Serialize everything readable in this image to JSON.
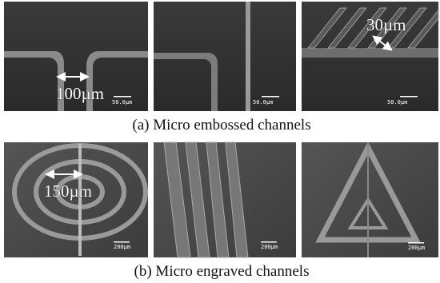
{
  "panels": [
    {
      "caption": "(a) Micro embossed channels",
      "images": [
        {
          "scale_bar": "50.0µm",
          "annotation": "100µm"
        },
        {
          "scale_bar": "50.0µm"
        },
        {
          "scale_bar": "50.0µm",
          "annotation": "30µm"
        }
      ]
    },
    {
      "caption": "(b) Micro engraved channels",
      "images": [
        {
          "scale_bar": "200µm",
          "annotation": "150µm"
        },
        {
          "scale_bar": "200µm"
        },
        {
          "scale_bar": "200µm"
        }
      ]
    }
  ]
}
